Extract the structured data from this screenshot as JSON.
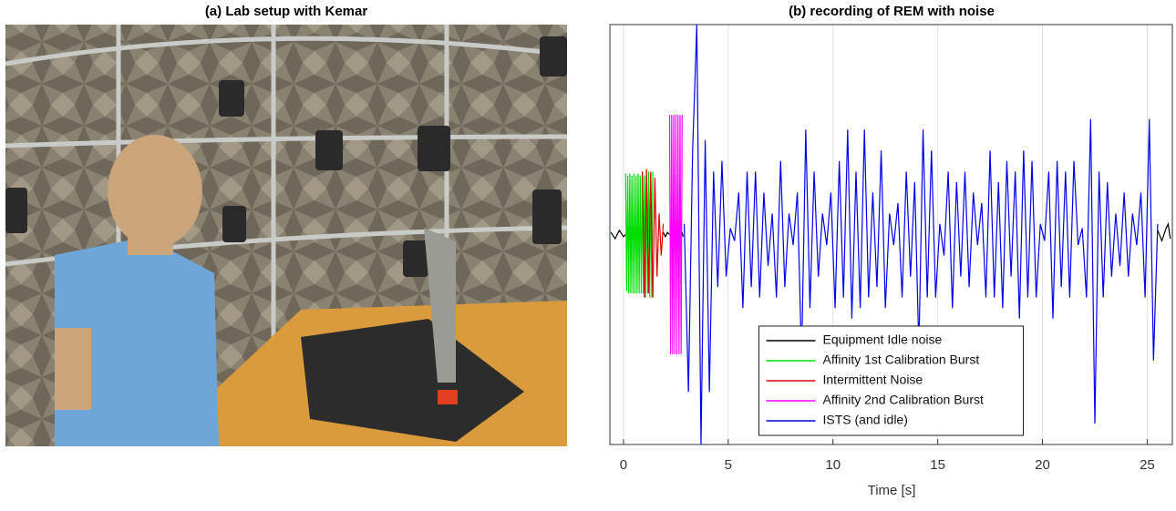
{
  "figure_a": {
    "title": "(a) Lab setup with Kemar"
  },
  "chart_data": {
    "type": "line",
    "title": "(b) recording of REM with noise",
    "xlabel": "Time [s]",
    "xlim": [
      -0.65,
      26.2
    ],
    "xticks": [
      0,
      5,
      10,
      15,
      20,
      25
    ],
    "ylim": [
      -1,
      1
    ],
    "grid": true,
    "legend": "lower center",
    "series": [
      {
        "name": "Equipment Idle noise",
        "color": "#000000",
        "x": [
          -0.6,
          -0.4,
          -0.2,
          0,
          0.1,
          1.0,
          1.9,
          2.0,
          2.1,
          2.2,
          2.4,
          2.8,
          2.85,
          15,
          25.5,
          25.7,
          25.9,
          26.0,
          26.1
        ],
        "values": [
          0.01,
          -0.02,
          0.02,
          -0.01,
          0.0,
          null,
          0.01,
          -0.01,
          0.01,
          0.0,
          null,
          0.01,
          -0.01,
          null,
          0.02,
          -0.03,
          0.03,
          0.05,
          -0.02
        ]
      },
      {
        "name": "Affinity 1st Calibration Burst",
        "color": "#00dd00",
        "x": [
          0.1,
          0.15,
          0.2,
          0.25,
          0.3,
          0.35,
          0.4,
          0.45,
          0.5,
          0.55,
          0.6,
          0.65,
          0.7,
          0.75,
          0.8,
          0.85,
          0.9,
          0.95,
          1.0,
          1.05,
          1.1,
          1.15,
          1.2,
          1.25,
          1.3,
          1.35,
          1.4
        ],
        "values": [
          0.29,
          -0.27,
          0.28,
          -0.28,
          0.29,
          -0.28,
          0.28,
          -0.28,
          0.29,
          -0.28,
          0.28,
          -0.28,
          0.29,
          -0.28,
          0.28,
          -0.28,
          0.3,
          -0.28,
          0.28,
          -0.3,
          0.29,
          -0.28,
          0.3,
          -0.3,
          0.29,
          -0.3,
          0.3
        ]
      },
      {
        "name": "Intermittent Noise",
        "color": "#dd0000",
        "x": [
          0.9,
          1.0,
          1.1,
          1.2,
          1.3,
          1.4,
          1.5,
          1.6,
          1.7,
          1.8,
          1.9
        ],
        "values": [
          0.3,
          -0.3,
          0.31,
          -0.28,
          0.3,
          -0.3,
          0.27,
          -0.2,
          0.1,
          -0.1,
          0.05
        ]
      },
      {
        "name": "Affinity 2nd Calibration Burst",
        "color": "#ff00ff",
        "x": [
          2.2,
          2.25,
          2.3,
          2.35,
          2.4,
          2.45,
          2.5,
          2.55,
          2.6,
          2.65,
          2.7,
          2.75,
          2.8
        ],
        "values": [
          0.57,
          -0.57,
          0.57,
          -0.57,
          0.57,
          -0.57,
          0.57,
          -0.57,
          0.57,
          -0.57,
          0.57,
          -0.57,
          0.57
        ]
      },
      {
        "name": "ISTS (and idle)",
        "color": "#0000ee",
        "x": [
          2.9,
          3.1,
          3.3,
          3.5,
          3.7,
          3.9,
          4.1,
          4.3,
          4.5,
          4.7,
          4.9,
          5.1,
          5.3,
          5.5,
          5.7,
          5.9,
          6.1,
          6.3,
          6.5,
          6.7,
          6.9,
          7.1,
          7.3,
          7.5,
          7.7,
          7.9,
          8.1,
          8.3,
          8.5,
          8.7,
          8.9,
          9.1,
          9.3,
          9.5,
          9.7,
          9.9,
          10.1,
          10.3,
          10.5,
          10.7,
          10.9,
          11.1,
          11.3,
          11.5,
          11.7,
          11.9,
          12.1,
          12.3,
          12.5,
          12.7,
          12.9,
          13.1,
          13.3,
          13.5,
          13.7,
          13.9,
          14.1,
          14.3,
          14.5,
          14.7,
          14.9,
          15.1,
          15.3,
          15.5,
          15.7,
          15.9,
          16.1,
          16.3,
          16.5,
          16.7,
          16.9,
          17.1,
          17.3,
          17.5,
          17.7,
          17.9,
          18.1,
          18.3,
          18.5,
          18.7,
          18.9,
          19.1,
          19.3,
          19.5,
          19.7,
          19.9,
          20.1,
          20.3,
          20.5,
          20.7,
          20.9,
          21.1,
          21.3,
          21.5,
          21.7,
          21.9,
          22.1,
          22.3,
          22.5,
          22.7,
          22.9,
          23.1,
          23.3,
          23.5,
          23.7,
          23.9,
          24.1,
          24.3,
          24.5,
          24.7,
          24.9,
          25.1,
          25.3,
          25.5
        ],
        "values": [
          0.05,
          -0.75,
          0.4,
          1.0,
          -1.0,
          0.45,
          -0.75,
          0.3,
          -0.25,
          0.35,
          -0.2,
          0.03,
          -0.03,
          0.2,
          -0.35,
          0.3,
          -0.25,
          0.3,
          -0.3,
          0.2,
          -0.15,
          0.1,
          -0.3,
          0.35,
          -0.25,
          0.1,
          -0.05,
          0.2,
          -0.6,
          0.5,
          -0.35,
          0.3,
          -0.2,
          0.1,
          -0.05,
          0.2,
          -0.35,
          0.35,
          -0.3,
          0.5,
          -0.4,
          0.3,
          -0.35,
          0.5,
          -0.3,
          0.2,
          -0.25,
          0.4,
          -0.35,
          0.1,
          -0.05,
          0.15,
          -0.3,
          0.3,
          -0.2,
          0.25,
          -0.55,
          0.5,
          -0.3,
          0.4,
          -0.3,
          0.05,
          -0.1,
          0.3,
          -0.35,
          0.25,
          -0.2,
          0.3,
          -0.25,
          0.2,
          -0.05,
          0.15,
          -0.3,
          0.4,
          -0.3,
          0.25,
          -0.35,
          0.35,
          -0.2,
          0.3,
          -0.4,
          0.4,
          -0.3,
          0.35,
          -0.3,
          0.05,
          -0.03,
          0.3,
          -0.4,
          0.35,
          -0.25,
          0.3,
          -0.3,
          0.35,
          -0.05,
          0.03,
          -0.3,
          0.55,
          -0.9,
          0.3,
          -0.3,
          0.25,
          -0.2,
          0.1,
          -0.15,
          0.2,
          -0.2,
          0.1,
          -0.05,
          0.2,
          -0.3,
          0.55,
          -0.6,
          0.05
        ]
      }
    ]
  }
}
